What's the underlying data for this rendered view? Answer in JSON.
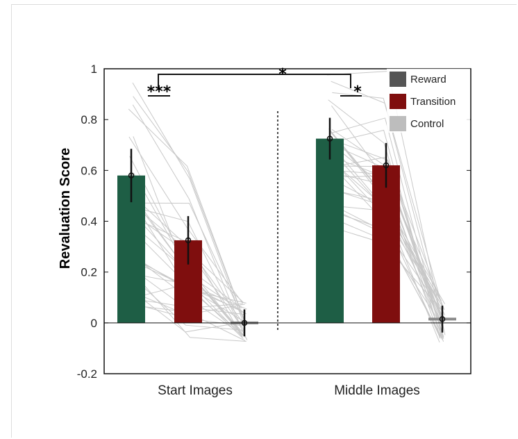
{
  "chart_data": {
    "type": "bar",
    "ylabel": "Revaluation Score",
    "xlabel": "",
    "ylim": [
      -0.2,
      1
    ],
    "yticks": [
      -0.2,
      0,
      0.2,
      0.4,
      0.6,
      0.8,
      1
    ],
    "ytick_labels": [
      "-0.2",
      "0",
      "0.2",
      "0.4",
      "0.6",
      "0.8",
      "1"
    ],
    "categories": [
      "Start Images",
      "Middle Images"
    ],
    "series": [
      {
        "name": "Reward",
        "color": "#1e5e45",
        "values": [
          0.58,
          0.725
        ],
        "err": [
          0.105,
          0.082
        ]
      },
      {
        "name": "Transition",
        "color": "#7f0e0e",
        "values": [
          0.325,
          0.62
        ],
        "err": [
          0.095,
          0.088
        ]
      },
      {
        "name": "Control",
        "color": "#8a8a8a",
        "values": [
          0.0,
          0.015
        ],
        "err": [
          0.053,
          0.053
        ]
      }
    ],
    "legend": {
      "position": "top-right",
      "entries": [
        {
          "label": "Reward",
          "color": "#555555"
        },
        {
          "label": "Transition",
          "color": "#7f0e0e"
        },
        {
          "label": "Control",
          "color": "#bdbdbd"
        }
      ]
    },
    "significance": {
      "start_reward_vs_transition": "***",
      "middle_reward_vs_transition": "*",
      "start_vs_middle": "*"
    },
    "grid": false,
    "individual_lines": "thin light-gray lines connecting per-subject scores across conditions"
  }
}
